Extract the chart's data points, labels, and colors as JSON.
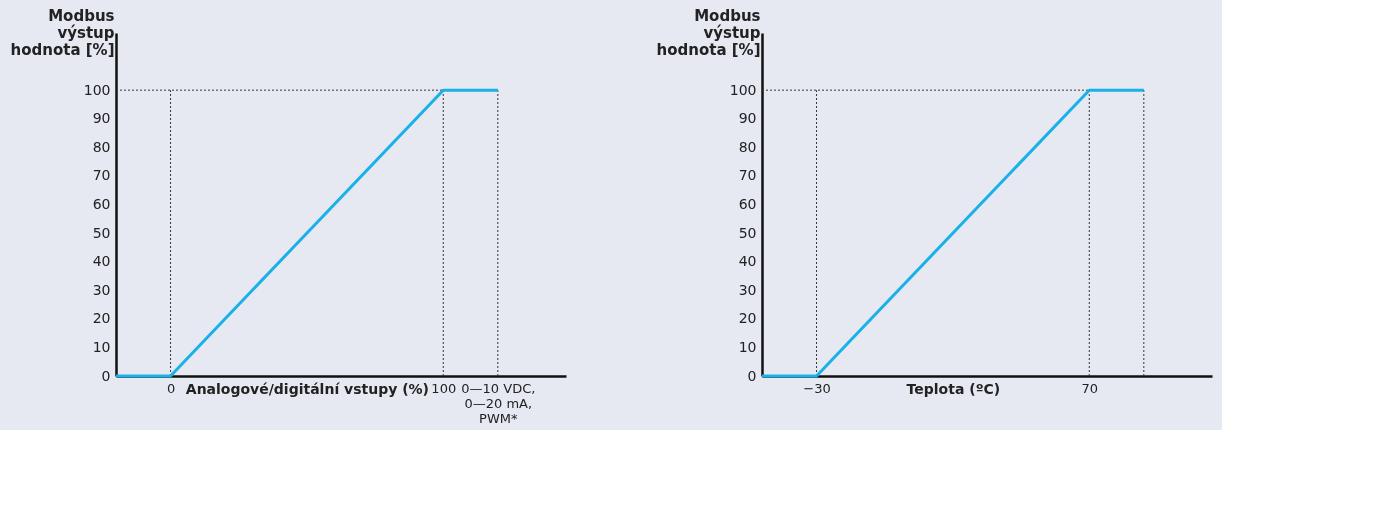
{
  "chart_data": [
    {
      "type": "line",
      "xlabel": "Analogové/digitální vstupy (%)",
      "ylabel": "Modbus výstup hodnota [%]",
      "x": [
        -20,
        0,
        100,
        120
      ],
      "series": [
        {
          "color": "#1ab0e8",
          "values": [
            0,
            0,
            100,
            100
          ]
        }
      ],
      "xlim": [
        -20,
        145
      ],
      "xticks": [
        0,
        100,
        {
          "value": 120,
          "label": "0—10 VDC, 0—20 mA, PWM*"
        }
      ],
      "ylim": [
        0,
        120
      ],
      "yticks": [
        0,
        10,
        20,
        30,
        40,
        50,
        60,
        70,
        80,
        90,
        100
      ],
      "ref_lines": [
        {
          "axis": "x",
          "value": 0,
          "color": "#333333",
          "line_style": "dotted"
        },
        {
          "axis": "x",
          "value": 100,
          "color": "#333333",
          "line_style": "dotted"
        },
        {
          "axis": "x",
          "value": 120,
          "color": "#333333",
          "line_style": "dotted"
        },
        {
          "axis": "y",
          "value": 100,
          "color": "#333333",
          "line_style": "dotted"
        }
      ],
      "grid": false,
      "marker": "none",
      "line_style": "solid"
    },
    {
      "type": "line",
      "xlabel": "Teplota (ºC)",
      "ylabel": "Modbus výstup hodnota [%]",
      "x": [
        -50,
        -30,
        70,
        90
      ],
      "series": [
        {
          "color": "#1ab0e8",
          "values": [
            0,
            0,
            100,
            100
          ]
        }
      ],
      "xlim": [
        -50,
        115
      ],
      "xticks": [
        -30,
        70
      ],
      "ylim": [
        0,
        120
      ],
      "yticks": [
        0,
        10,
        20,
        30,
        40,
        50,
        60,
        70,
        80,
        90,
        100
      ],
      "ref_lines": [
        {
          "axis": "x",
          "value": -30,
          "color": "#333333",
          "line_style": "dotted"
        },
        {
          "axis": "x",
          "value": 70,
          "color": "#333333",
          "line_style": "dotted"
        },
        {
          "axis": "x",
          "value": 90,
          "color": "#333333",
          "line_style": "dotted"
        },
        {
          "axis": "y",
          "value": 100,
          "color": "#333333",
          "line_style": "dotted"
        }
      ],
      "grid": false,
      "marker": "none",
      "line_style": "solid"
    }
  ]
}
